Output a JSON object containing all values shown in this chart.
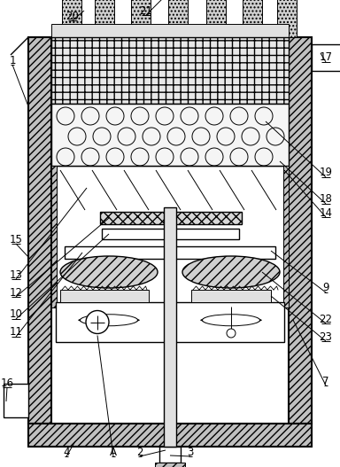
{
  "bg_color": "#ffffff",
  "black": "#000000",
  "wall_fc": "#c8c8c8",
  "fig_width": 3.84,
  "fig_height": 5.27
}
